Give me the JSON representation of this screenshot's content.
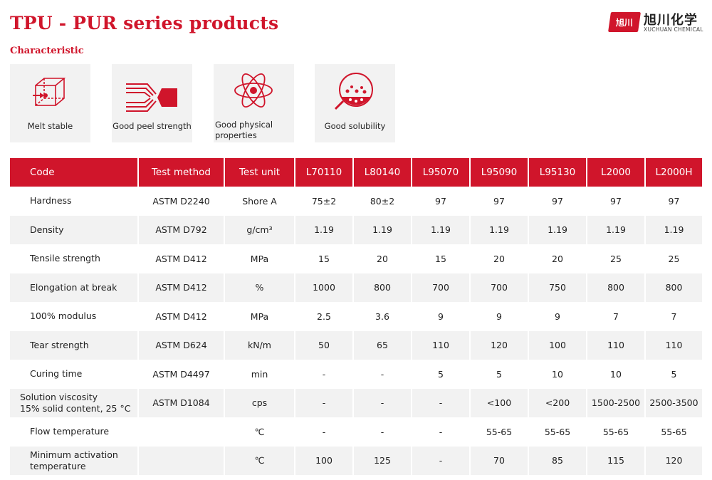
{
  "title": "TPU - PUR series products",
  "subtitle": "Characteristic",
  "logo": {
    "mark": "旭川",
    "chinese": "旭川化学",
    "english": "XUCHUAN CHEMICAL",
    "brand_color": "#d0152b"
  },
  "features": [
    {
      "icon": "cube-icon",
      "label": "Melt stable"
    },
    {
      "icon": "peel-strength-icon",
      "label": "Good peel strength"
    },
    {
      "icon": "atom-icon",
      "label_line1": "Good physical",
      "label_line2": "properties"
    },
    {
      "icon": "solubility-icon",
      "label": "Good solubility"
    }
  ],
  "table": {
    "headers": [
      "Code",
      "Test method",
      "Test unit",
      "L70110",
      "L80140",
      "L95070",
      "L95090",
      "L95130",
      "L2000",
      "L2000H"
    ],
    "rows": [
      {
        "property": "Hardness",
        "method": "ASTM D2240",
        "unit": "Shore A",
        "values": [
          "75±2",
          "80±2",
          "97",
          "97",
          "97",
          "97",
          "97"
        ]
      },
      {
        "property": "Density",
        "method": "ASTM D792",
        "unit": "g/cm³",
        "values": [
          "1.19",
          "1.19",
          "1.19",
          "1.19",
          "1.19",
          "1.19",
          "1.19"
        ]
      },
      {
        "property": "Tensile strength",
        "method": "ASTM D412",
        "unit": "MPa",
        "values": [
          "15",
          "20",
          "15",
          "20",
          "20",
          "25",
          "25"
        ]
      },
      {
        "property": "Elongation at break",
        "method": "ASTM D412",
        "unit": "%",
        "values": [
          "1000",
          "800",
          "700",
          "700",
          "750",
          "800",
          "800"
        ]
      },
      {
        "property": "100% modulus",
        "method": "ASTM D412",
        "unit": "MPa",
        "values": [
          "2.5",
          "3.6",
          "9",
          "9",
          "9",
          "7",
          "7"
        ]
      },
      {
        "property": "Tear strength",
        "method": "ASTM D624",
        "unit": "kN/m",
        "values": [
          "50",
          "65",
          "110",
          "120",
          "100",
          "110",
          "110"
        ]
      },
      {
        "property": "Curing time",
        "method": "ASTM D4497",
        "unit": "min",
        "values": [
          "-",
          "-",
          "5",
          "5",
          "10",
          "10",
          "5"
        ]
      },
      {
        "property_line1": "Solution viscosity",
        "property_line2": "15% solid content, 25 °C",
        "method": "ASTM D1084",
        "unit": "cps",
        "values": [
          "-",
          "-",
          "-",
          "<100",
          "<200",
          "1500-2500",
          "2500-3500"
        ]
      },
      {
        "property": "Flow temperature",
        "method": "",
        "unit": "℃",
        "values": [
          "-",
          "-",
          "-",
          "55-65",
          "55-65",
          "55-65",
          "55-65"
        ]
      },
      {
        "property_line1": "Minimum activation",
        "property_line2": "temperature",
        "method": "",
        "unit": "℃",
        "values": [
          "100",
          "125",
          "-",
          "70",
          "85",
          "115",
          "120"
        ]
      }
    ]
  }
}
